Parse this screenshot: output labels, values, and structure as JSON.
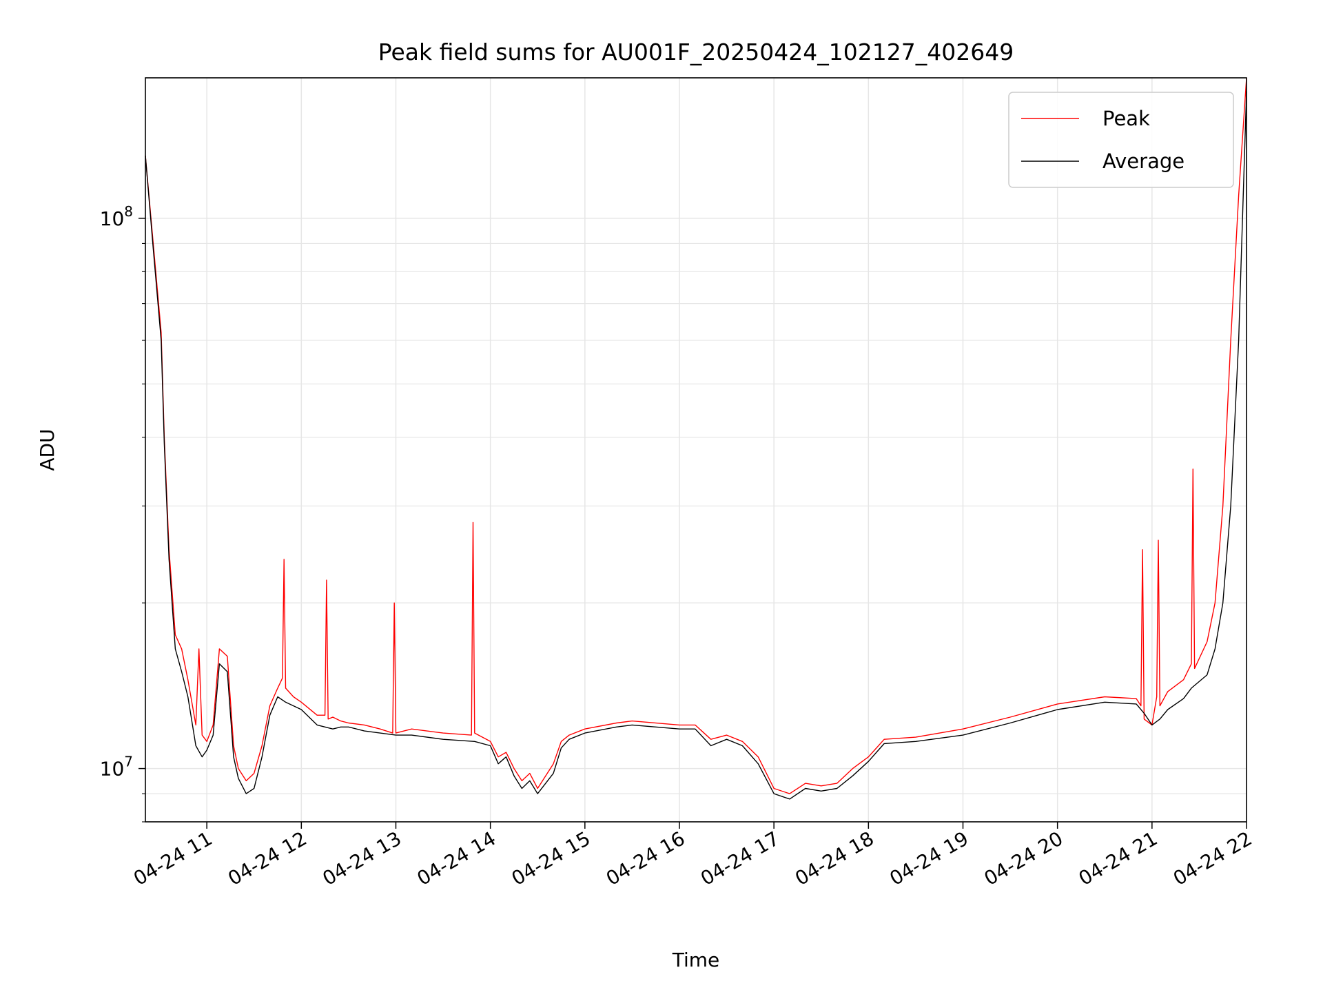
{
  "chart_data": {
    "type": "line",
    "title": "Peak field sums for AU001F_20250424_102127_402649",
    "xlabel": "Time",
    "ylabel": "ADU",
    "yscale": "log",
    "ylim": [
      8000000,
      180000000
    ],
    "xlim": [
      "2025-04-24 10:21",
      "2025-04-24 22:00"
    ],
    "x_ticks": [
      {
        "x": "2025-04-24 11:00",
        "label": "04-24 11"
      },
      {
        "x": "2025-04-24 12:00",
        "label": "04-24 12"
      },
      {
        "x": "2025-04-24 13:00",
        "label": "04-24 13"
      },
      {
        "x": "2025-04-24 14:00",
        "label": "04-24 14"
      },
      {
        "x": "2025-04-24 15:00",
        "label": "04-24 15"
      },
      {
        "x": "2025-04-24 16:00",
        "label": "04-24 16"
      },
      {
        "x": "2025-04-24 17:00",
        "label": "04-24 17"
      },
      {
        "x": "2025-04-24 18:00",
        "label": "04-24 18"
      },
      {
        "x": "2025-04-24 19:00",
        "label": "04-24 19"
      },
      {
        "x": "2025-04-24 20:00",
        "label": "04-24 20"
      },
      {
        "x": "2025-04-24 21:00",
        "label": "04-24 21"
      },
      {
        "x": "2025-04-24 22:00",
        "label": "04-24 22"
      }
    ],
    "y_ticks": [
      {
        "value": 10000000,
        "label_base": "10",
        "label_exp": "7"
      },
      {
        "value": 100000000,
        "label_base": "10",
        "label_exp": "8"
      }
    ],
    "grid": true,
    "legend": {
      "placement": "top-right",
      "entries": [
        "Peak",
        "Average"
      ]
    },
    "series": [
      {
        "name": "Peak",
        "color": "#ff0000",
        "x": [
          "2025-04-24 10:21",
          "2025-04-24 10:26",
          "2025-04-24 10:31",
          "2025-04-24 10:33",
          "2025-04-24 10:36",
          "2025-04-24 10:40",
          "2025-04-24 10:44",
          "2025-04-24 10:48",
          "2025-04-24 10:53",
          "2025-04-24 10:55",
          "2025-04-24 10:57",
          "2025-04-24 11:00",
          "2025-04-24 11:04",
          "2025-04-24 11:08",
          "2025-04-24 11:13",
          "2025-04-24 11:17",
          "2025-04-24 11:20",
          "2025-04-24 11:25",
          "2025-04-24 11:30",
          "2025-04-24 11:35",
          "2025-04-24 11:40",
          "2025-04-24 11:45",
          "2025-04-24 11:48",
          "2025-04-24 11:49",
          "2025-04-24 11:50",
          "2025-04-24 11:55",
          "2025-04-24 12:00",
          "2025-04-24 12:10",
          "2025-04-24 12:15",
          "2025-04-24 12:16",
          "2025-04-24 12:17",
          "2025-04-24 12:20",
          "2025-04-24 12:25",
          "2025-04-24 12:30",
          "2025-04-24 12:40",
          "2025-04-24 12:50",
          "2025-04-24 12:58",
          "2025-04-24 12:59",
          "2025-04-24 13:00",
          "2025-04-24 13:10",
          "2025-04-24 13:30",
          "2025-04-24 13:48",
          "2025-04-24 13:49",
          "2025-04-24 13:50",
          "2025-04-24 14:00",
          "2025-04-24 14:05",
          "2025-04-24 14:10",
          "2025-04-24 14:15",
          "2025-04-24 14:20",
          "2025-04-24 14:25",
          "2025-04-24 14:30",
          "2025-04-24 14:40",
          "2025-04-24 14:45",
          "2025-04-24 14:50",
          "2025-04-24 15:00",
          "2025-04-24 15:20",
          "2025-04-24 15:30",
          "2025-04-24 16:00",
          "2025-04-24 16:10",
          "2025-04-24 16:20",
          "2025-04-24 16:30",
          "2025-04-24 16:40",
          "2025-04-24 16:50",
          "2025-04-24 17:00",
          "2025-04-24 17:10",
          "2025-04-24 17:20",
          "2025-04-24 17:30",
          "2025-04-24 17:40",
          "2025-04-24 17:50",
          "2025-04-24 18:00",
          "2025-04-24 18:10",
          "2025-04-24 18:30",
          "2025-04-24 19:00",
          "2025-04-24 19:30",
          "2025-04-24 20:00",
          "2025-04-24 20:30",
          "2025-04-24 20:50",
          "2025-04-24 20:53",
          "2025-04-24 20:54",
          "2025-04-24 20:55",
          "2025-04-24 21:00",
          "2025-04-24 21:03",
          "2025-04-24 21:04",
          "2025-04-24 21:05",
          "2025-04-24 21:10",
          "2025-04-24 21:20",
          "2025-04-24 21:25",
          "2025-04-24 21:26",
          "2025-04-24 21:27",
          "2025-04-24 21:35",
          "2025-04-24 21:40",
          "2025-04-24 21:45",
          "2025-04-24 21:50",
          "2025-04-24 21:55",
          "2025-04-24 22:00"
        ],
        "y": [
          130000000,
          90000000,
          62000000,
          40000000,
          25000000,
          17500000,
          16500000,
          14500000,
          12000000,
          16500000,
          11500000,
          11200000,
          12000000,
          16500000,
          16000000,
          11000000,
          10000000,
          9500000,
          9800000,
          11000000,
          13000000,
          14000000,
          14600000,
          24000000,
          14000000,
          13500000,
          13200000,
          12500000,
          12500000,
          22000000,
          12300000,
          12400000,
          12200000,
          12100000,
          12000000,
          11800000,
          11600000,
          20000000,
          11600000,
          11800000,
          11600000,
          11500000,
          28000000,
          11600000,
          11200000,
          10500000,
          10700000,
          10000000,
          9500000,
          9800000,
          9200000,
          10200000,
          11200000,
          11500000,
          11800000,
          12100000,
          12200000,
          12000000,
          12000000,
          11300000,
          11500000,
          11200000,
          10500000,
          9200000,
          9000000,
          9400000,
          9300000,
          9400000,
          10000000,
          10500000,
          11300000,
          11400000,
          11800000,
          12400000,
          13100000,
          13500000,
          13400000,
          13000000,
          25000000,
          12300000,
          12000000,
          13500000,
          26000000,
          13000000,
          13800000,
          14500000,
          15500000,
          35000000,
          15200000,
          17000000,
          20000000,
          30000000,
          60000000,
          110000000,
          180000000
        ]
      },
      {
        "name": "Average",
        "color": "#000000",
        "x": [
          "2025-04-24 10:21",
          "2025-04-24 10:26",
          "2025-04-24 10:31",
          "2025-04-24 10:33",
          "2025-04-24 10:36",
          "2025-04-24 10:40",
          "2025-04-24 10:44",
          "2025-04-24 10:48",
          "2025-04-24 10:53",
          "2025-04-24 10:57",
          "2025-04-24 11:00",
          "2025-04-24 11:04",
          "2025-04-24 11:08",
          "2025-04-24 11:13",
          "2025-04-24 11:17",
          "2025-04-24 11:20",
          "2025-04-24 11:25",
          "2025-04-24 11:30",
          "2025-04-24 11:35",
          "2025-04-24 11:40",
          "2025-04-24 11:45",
          "2025-04-24 11:50",
          "2025-04-24 11:55",
          "2025-04-24 12:00",
          "2025-04-24 12:10",
          "2025-04-24 12:20",
          "2025-04-24 12:25",
          "2025-04-24 12:30",
          "2025-04-24 12:40",
          "2025-04-24 12:50",
          "2025-04-24 13:00",
          "2025-04-24 13:10",
          "2025-04-24 13:30",
          "2025-04-24 13:50",
          "2025-04-24 14:00",
          "2025-04-24 14:05",
          "2025-04-24 14:10",
          "2025-04-24 14:15",
          "2025-04-24 14:20",
          "2025-04-24 14:25",
          "2025-04-24 14:30",
          "2025-04-24 14:40",
          "2025-04-24 14:45",
          "2025-04-24 14:50",
          "2025-04-24 15:00",
          "2025-04-24 15:20",
          "2025-04-24 15:30",
          "2025-04-24 16:00",
          "2025-04-24 16:10",
          "2025-04-24 16:20",
          "2025-04-24 16:30",
          "2025-04-24 16:40",
          "2025-04-24 16:50",
          "2025-04-24 17:00",
          "2025-04-24 17:10",
          "2025-04-24 17:20",
          "2025-04-24 17:30",
          "2025-04-24 17:40",
          "2025-04-24 17:50",
          "2025-04-24 18:00",
          "2025-04-24 18:10",
          "2025-04-24 18:30",
          "2025-04-24 19:00",
          "2025-04-24 19:30",
          "2025-04-24 20:00",
          "2025-04-24 20:30",
          "2025-04-24 20:50",
          "2025-04-24 20:55",
          "2025-04-24 21:00",
          "2025-04-24 21:05",
          "2025-04-24 21:10",
          "2025-04-24 21:20",
          "2025-04-24 21:25",
          "2025-04-24 21:35",
          "2025-04-24 21:40",
          "2025-04-24 21:45",
          "2025-04-24 21:50",
          "2025-04-24 21:55",
          "2025-04-24 22:00"
        ],
        "y": [
          130000000,
          88000000,
          60000000,
          39000000,
          24000000,
          16500000,
          15000000,
          13500000,
          11000000,
          10500000,
          10800000,
          11500000,
          15500000,
          15000000,
          10500000,
          9600000,
          9000000,
          9200000,
          10500000,
          12500000,
          13500000,
          13200000,
          13000000,
          12800000,
          12000000,
          11800000,
          11900000,
          11900000,
          11700000,
          11600000,
          11500000,
          11500000,
          11300000,
          11200000,
          11000000,
          10200000,
          10500000,
          9700000,
          9200000,
          9500000,
          9000000,
          9800000,
          10900000,
          11300000,
          11600000,
          11900000,
          12000000,
          11800000,
          11800000,
          11000000,
          11300000,
          11000000,
          10200000,
          9000000,
          8800000,
          9200000,
          9100000,
          9200000,
          9700000,
          10300000,
          11100000,
          11200000,
          11500000,
          12100000,
          12800000,
          13200000,
          13100000,
          12600000,
          12000000,
          12300000,
          12800000,
          13400000,
          14000000,
          14800000,
          16500000,
          20000000,
          30000000,
          60000000,
          170000000
        ]
      }
    ]
  }
}
